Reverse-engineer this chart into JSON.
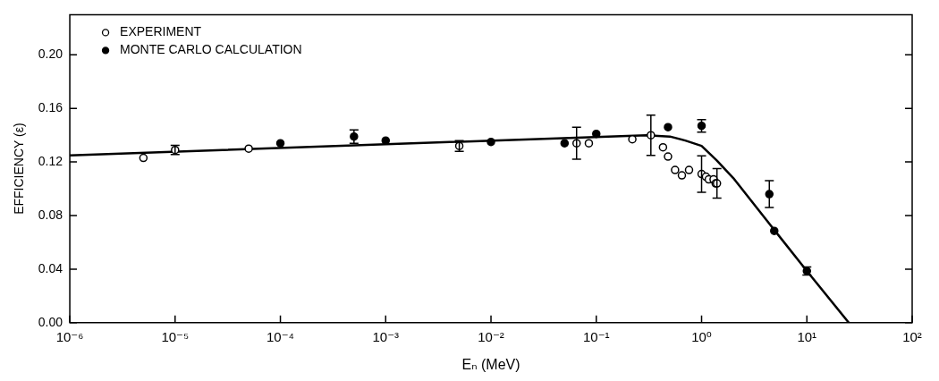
{
  "chart_data": {
    "type": "scatter",
    "xlabel": "Eₙ (MeV)",
    "ylabel": "EFFICIENCY (ε)",
    "log": "x",
    "xlim": [
      1e-06,
      100
    ],
    "xticks": [
      {
        "value": 1e-06,
        "label": "10⁻⁶"
      },
      {
        "value": 1e-05,
        "label": "10⁻⁵"
      },
      {
        "value": 0.0001,
        "label": "10⁻⁴"
      },
      {
        "value": 0.001,
        "label": "10⁻³"
      },
      {
        "value": 0.01,
        "label": "10⁻²"
      },
      {
        "value": 0.1,
        "label": "10⁻¹"
      },
      {
        "value": 1,
        "label": "10⁰"
      },
      {
        "value": 10,
        "label": "10¹"
      },
      {
        "value": 100,
        "label": "10²"
      }
    ],
    "ylim": [
      0,
      0.23
    ],
    "yticks": [
      {
        "value": 0,
        "label": "0.00"
      },
      {
        "value": 0.04,
        "label": "0.04"
      },
      {
        "value": 0.08,
        "label": "0.08"
      },
      {
        "value": 0.12,
        "label": "0.12"
      },
      {
        "value": 0.16,
        "label": "0.16"
      },
      {
        "value": 0.2,
        "label": "0.20"
      }
    ],
    "grid": false,
    "legend": "top left",
    "series": [
      {
        "name": "EXPERIMENT",
        "color": "#000000",
        "marker": "circle",
        "x": [
          5e-06,
          1e-05,
          5e-05,
          0.005,
          0.065,
          0.085,
          0.22,
          0.33,
          0.43,
          0.48,
          0.56,
          0.65,
          0.76,
          1.0,
          1.1,
          1.17,
          1.3,
          1.36,
          1.4
        ],
        "values": [
          0.123,
          0.129,
          0.13,
          0.132,
          0.134,
          0.134,
          0.137,
          0.14,
          0.131,
          0.124,
          0.114,
          0.11,
          0.114,
          0.111,
          0.109,
          0.107,
          0.107,
          0.104,
          0.104
        ],
        "errors": [
          null,
          0.0034,
          null,
          0.004,
          0.012,
          null,
          null,
          0.015,
          null,
          null,
          null,
          null,
          null,
          0.0136,
          null,
          null,
          null,
          null,
          0.011
        ]
      },
      {
        "name": "MONTE CARLO CALCULATION",
        "color": "#000000",
        "marker": "circle",
        "x": [
          0.0001,
          0.0005,
          0.001,
          0.01,
          0.05,
          0.1,
          0.48,
          1.0,
          4.4,
          4.9,
          10
        ],
        "values": [
          0.134,
          0.139,
          0.136,
          0.135,
          0.134,
          0.141,
          0.146,
          0.147,
          0.096,
          0.0685,
          0.0386
        ],
        "errors": [
          null,
          0.005,
          null,
          null,
          null,
          null,
          null,
          0.0047,
          0.01,
          null,
          0.003
        ]
      },
      {
        "type": "line",
        "color": "#000000",
        "x": [
          1e-06,
          0.3,
          0.5,
          0.7,
          1,
          1.4,
          2,
          5,
          10,
          25
        ],
        "values": [
          0.125,
          0.14,
          0.139,
          0.136,
          0.132,
          0.121,
          0.108,
          0.0684,
          0.0386,
          0
        ]
      }
    ]
  }
}
